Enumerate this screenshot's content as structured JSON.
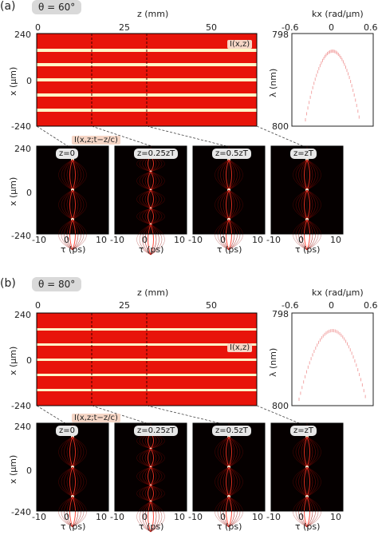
{
  "figure": {
    "panels": [
      {
        "id": "a",
        "letter": "(a)",
        "theta": "θ = 60°",
        "top_axis_label": "z (mm)",
        "top_ticks": [
          "0",
          "25",
          "50"
        ],
        "x_axis_label": "x (μm)",
        "x_ticks": [
          "240",
          "0",
          "-240"
        ],
        "main_badge": "I(x,z)",
        "small_badge": "I(x,z;t−z/c)",
        "kx_label": "kx (rad/μm)",
        "kx_ticks": [
          "-0.6",
          "0",
          "0.6"
        ],
        "lambda_label": "λ (nm)",
        "lambda_ticks": [
          "798",
          "800"
        ],
        "tau_label": "τ (ps)",
        "tau_ticks": [
          "-10",
          "0",
          "10"
        ],
        "subpanels": [
          "z=0",
          "z=0.25zT",
          "z=0.5zT",
          "z=zT"
        ]
      },
      {
        "id": "b",
        "letter": "(b)",
        "theta": "θ = 80°",
        "top_axis_label": "z (mm)",
        "top_ticks": [
          "0",
          "25",
          "50"
        ],
        "x_axis_label": "x (μm)",
        "x_ticks": [
          "240",
          "0",
          "-240"
        ],
        "main_badge": "I(x,z)",
        "small_badge": "I(x,z;t−z/c)",
        "kx_label": "kx (rad/μm)",
        "kx_ticks": [
          "-0.6",
          "0",
          "0.6"
        ],
        "lambda_label": "λ (nm)",
        "lambda_ticks": [
          "798",
          "800"
        ],
        "tau_label": "τ (ps)",
        "tau_ticks": [
          "-10",
          "0",
          "10"
        ],
        "subpanels": [
          "z=0",
          "z=0.25zT",
          "z=0.5zT",
          "z=zT"
        ]
      }
    ]
  },
  "colors": {
    "red": "#e8140a",
    "dark": "#000000",
    "line": "#fff7c8"
  }
}
